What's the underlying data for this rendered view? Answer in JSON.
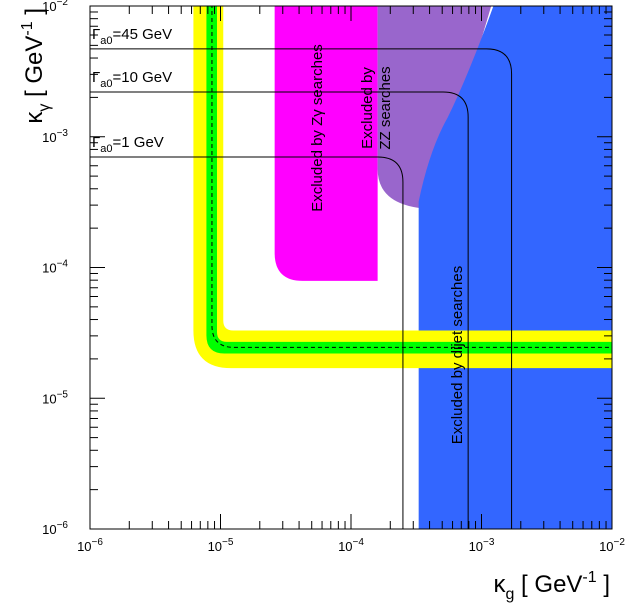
{
  "chart_data": {
    "type": "area",
    "x_axis": {
      "label_symbol": "κ",
      "label_sub": "g",
      "label_unit": "[ GeV",
      "label_exp": "-1",
      "label_close": "]",
      "scale": "log",
      "range": [
        1e-06,
        0.01
      ],
      "ticks": [
        {
          "value": 1e-06,
          "mant": "10",
          "exp": "−6"
        },
        {
          "value": 1e-05,
          "mant": "10",
          "exp": "−5"
        },
        {
          "value": 0.0001,
          "mant": "10",
          "exp": "−4"
        },
        {
          "value": 0.001,
          "mant": "10",
          "exp": "−3"
        },
        {
          "value": 0.01,
          "mant": "10",
          "exp": "−2"
        }
      ]
    },
    "y_axis": {
      "label_symbol": "κ",
      "label_sub": "γ",
      "label_unit": "[ GeV",
      "label_exp": "-1",
      "label_close": "]",
      "scale": "log",
      "range": [
        1e-06,
        0.01
      ],
      "ticks": [
        {
          "value": 1e-06,
          "mant": "10",
          "exp": "−6"
        },
        {
          "value": 1e-05,
          "mant": "10",
          "exp": "−5"
        },
        {
          "value": 0.0001,
          "mant": "10",
          "exp": "−4"
        },
        {
          "value": 0.001,
          "mant": "10",
          "exp": "−3"
        },
        {
          "value": 0.01,
          "mant": "10",
          "exp": "−2"
        }
      ]
    },
    "excluded_regions": [
      {
        "id": "zgamma",
        "label": "Excluded by Zγ searches",
        "color": "#ff00ff",
        "bounds": {
          "xmin": 2.6e-05,
          "xmax": 0.00016,
          "ymin": 7.9e-05,
          "ymax": 0.01
        }
      },
      {
        "id": "zz",
        "label_lines": [
          "Excluded by",
          "ZZ searches"
        ],
        "color": "#9966cc",
        "bounds": {
          "xmin": 0.00016,
          "xmax": 0.0012,
          "ymin": 0.00028,
          "ymax": 0.01
        }
      },
      {
        "id": "dijet",
        "label": "Excluded by dijet searches",
        "color": "#3366ff",
        "bounds": {
          "xmin": 0.00033,
          "xmax": 0.01,
          "ymin": 1e-06,
          "ymax": 0.01
        }
      }
    ],
    "expected_band": {
      "central": {
        "kg": 8.6e-06,
        "kgamma": 2.45e-05,
        "style": "dashed"
      },
      "one_sigma": {
        "color": "#00ff00",
        "kg": [
          7.8e-06,
          9.4e-06
        ],
        "kgamma": [
          2.2e-05,
          2.7e-05
        ]
      },
      "two_sigma": {
        "color": "#ffff00",
        "kg": [
          6.2e-06,
          1.05e-05
        ],
        "kgamma": [
          1.7e-05,
          3.3e-05
        ]
      }
    },
    "width_contours": [
      {
        "label_gamma": "Γ",
        "label_sub": "a0",
        "label_value": "=45 GeV",
        "kg_asym": 0.0017,
        "kgamma_asym": 0.0047
      },
      {
        "label_gamma": "Γ",
        "label_sub": "a0",
        "label_value": "=10 GeV",
        "kg_asym": 0.00079,
        "kgamma_asym": 0.0022
      },
      {
        "label_gamma": "Γ",
        "label_sub": "a0",
        "label_value": "=1 GeV",
        "kg_asym": 0.00025,
        "kgamma_asym": 0.0007
      }
    ]
  }
}
